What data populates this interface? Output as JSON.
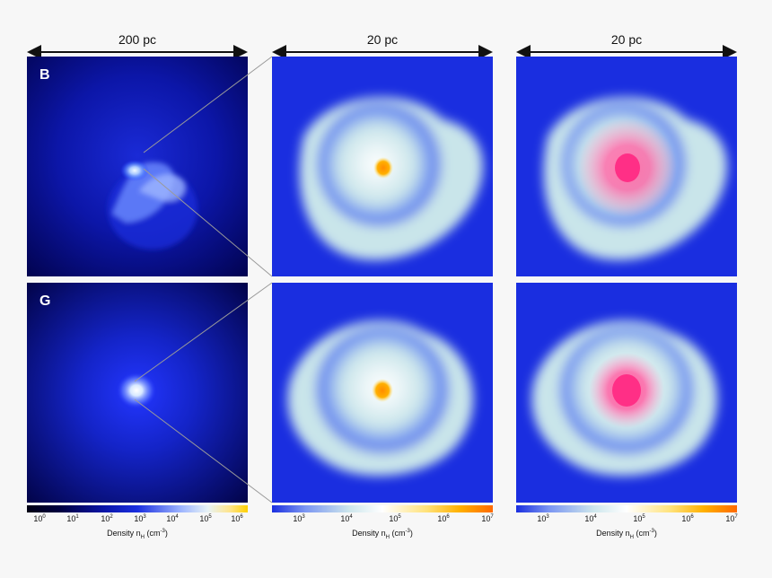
{
  "figure": {
    "columns": [
      {
        "id": "left",
        "scale": "200 pc",
        "colorbar_ticks": [
          "10",
          "10",
          "10",
          "10",
          "10",
          "10",
          "10"
        ],
        "colorbar_exps": [
          "0",
          "1",
          "2",
          "3",
          "4",
          "5",
          "6"
        ]
      },
      {
        "id": "middle",
        "scale": "20 pc",
        "colorbar_ticks": [
          "10",
          "10",
          "10",
          "10",
          "10"
        ],
        "colorbar_exps": [
          "3",
          "4",
          "5",
          "6",
          "7"
        ]
      },
      {
        "id": "right",
        "scale": "20 pc",
        "colorbar_ticks": [
          "10",
          "10",
          "10",
          "10",
          "10"
        ],
        "colorbar_exps": [
          "3",
          "4",
          "5",
          "6",
          "7"
        ]
      }
    ],
    "rows": [
      {
        "id": "top",
        "letter": "B"
      },
      {
        "id": "bottom",
        "letter": "G"
      }
    ],
    "colorbar_title_main": "Density n",
    "colorbar_title_sub": "H",
    "colorbar_title_unit_pre": " (cm",
    "colorbar_title_unit_exp": "-3",
    "colorbar_title_unit_post": ")",
    "colors": {
      "deep_blue": "#0f1fd6",
      "navy": "#00003a",
      "pale_cyan": "#cfe7ec",
      "core_orange": "#f29400",
      "star_pink": "#ff3d8a"
    }
  }
}
